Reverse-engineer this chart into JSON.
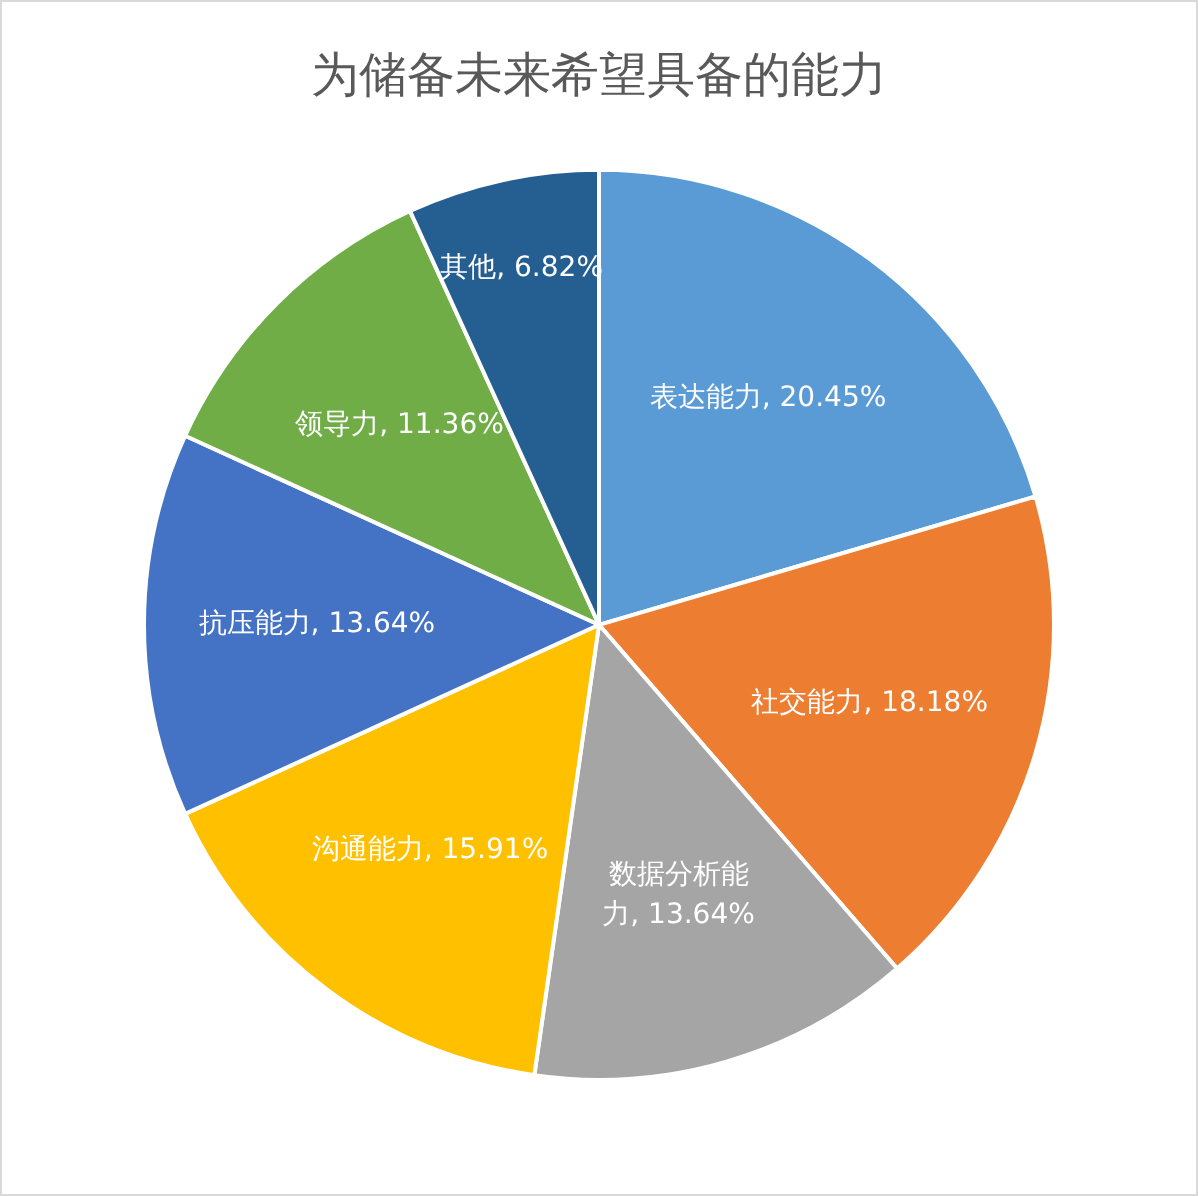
{
  "chart_data": {
    "type": "pie",
    "title": "为储备未来希望具备的能力",
    "categories": [
      "表达能力",
      "社交能力",
      "数据分析能力",
      "沟通能力",
      "抗压能力",
      "领导力",
      "其他"
    ],
    "values": [
      20.45,
      18.18,
      13.64,
      15.91,
      13.64,
      11.36,
      6.82
    ],
    "value_labels": [
      "20.45%",
      "18.18%",
      "13.64%",
      "15.91%",
      "13.64%",
      "11.36%",
      "6.82%"
    ],
    "colors": [
      "#5b9bd5",
      "#ed7d31",
      "#a5a5a5",
      "#ffc000",
      "#4472c4",
      "#70ad47",
      "#255e91"
    ],
    "legend": false
  }
}
